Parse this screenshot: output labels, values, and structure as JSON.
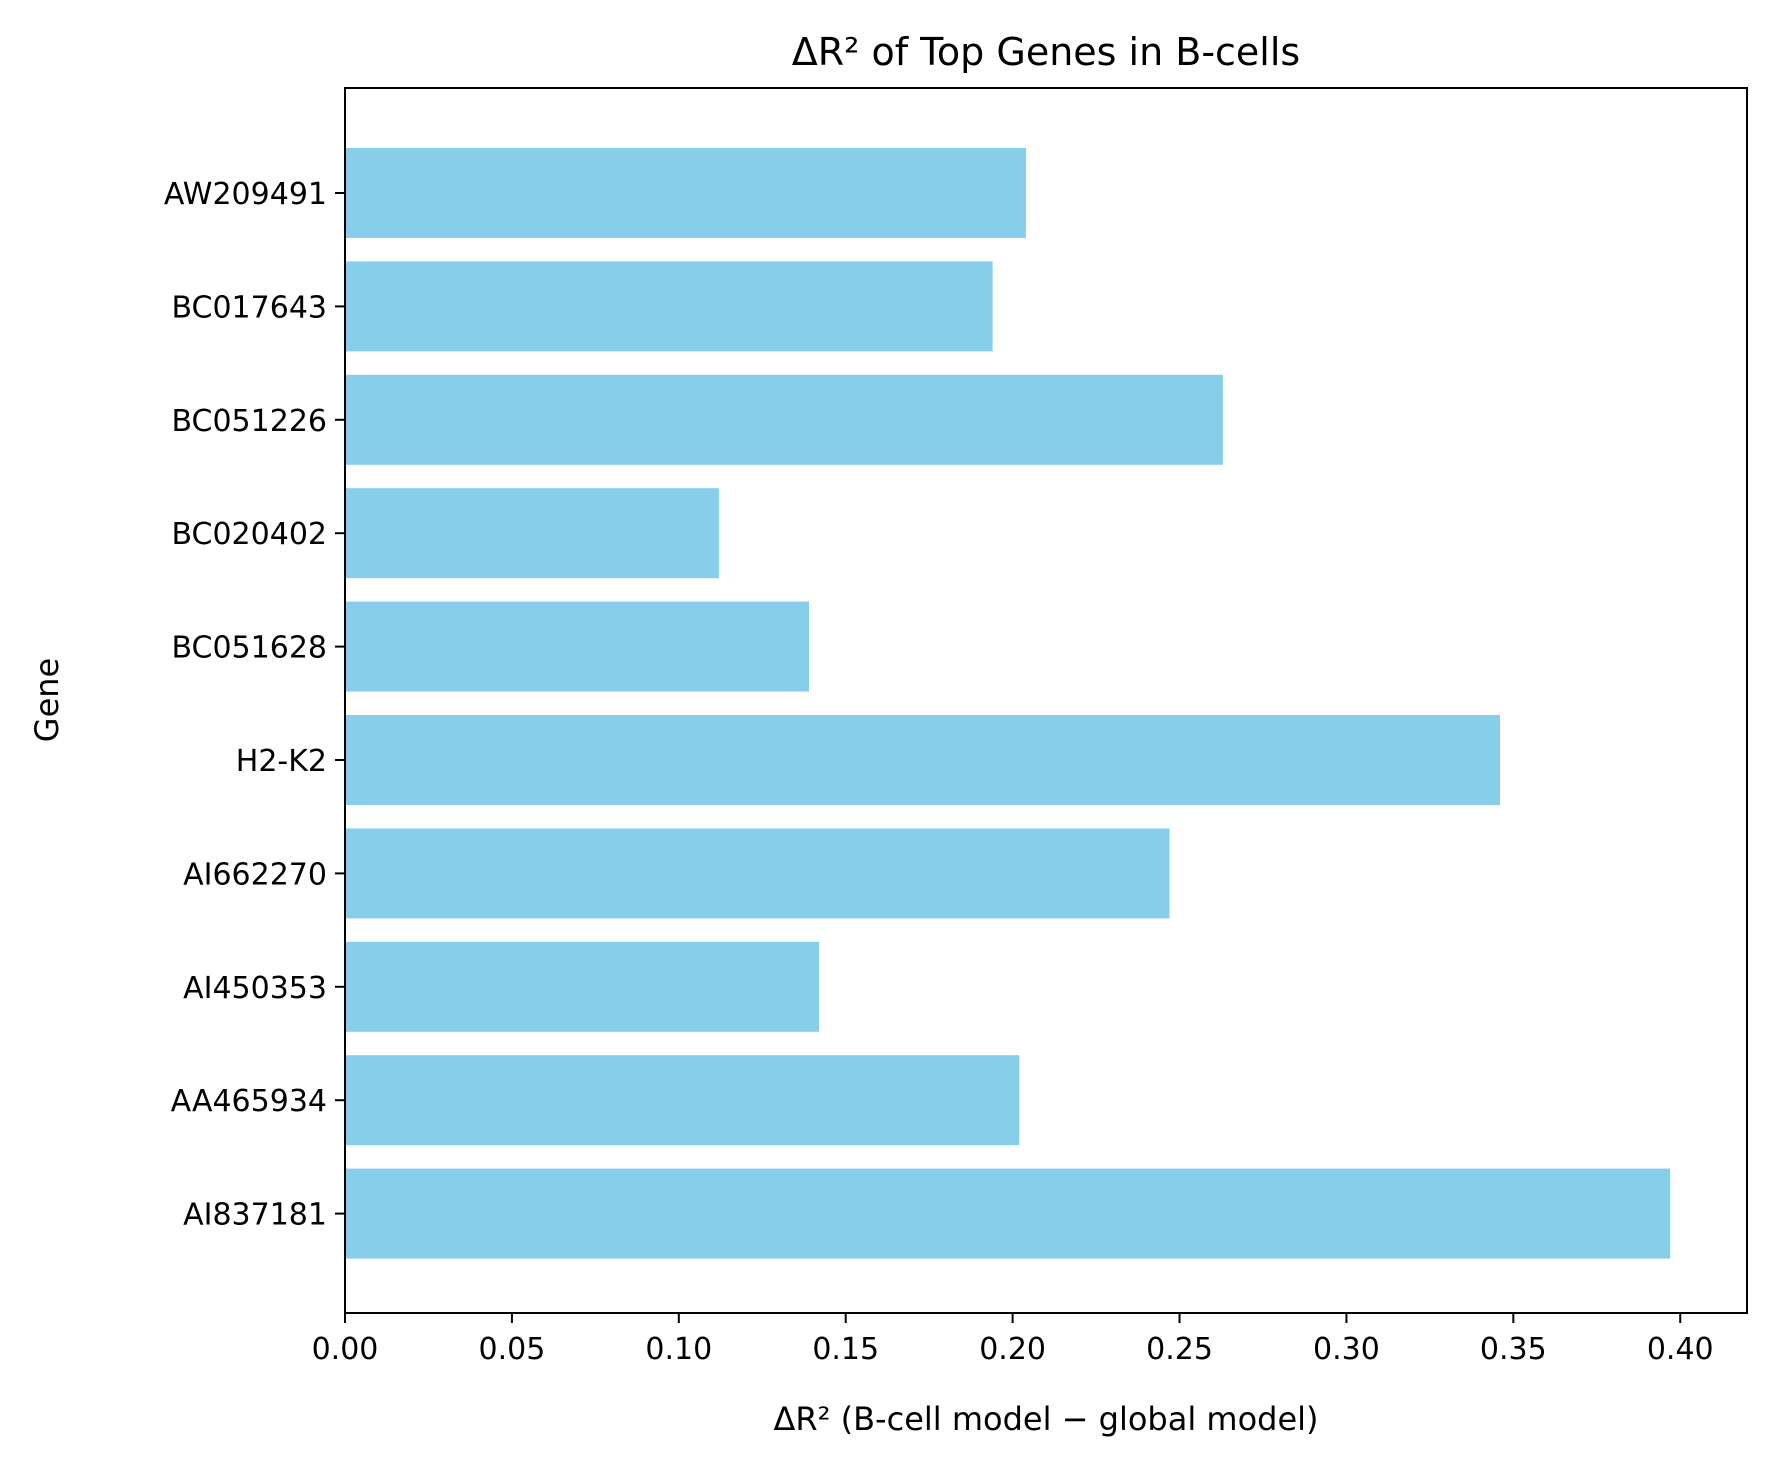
{
  "chart_data": {
    "type": "bar",
    "orientation": "horizontal",
    "title": "ΔR² of Top Genes in B-cells",
    "xlabel": "ΔR² (B-cell model − global model)",
    "ylabel": "Gene",
    "xlim": [
      0,
      0.42
    ],
    "xticks": [
      "0.00",
      "0.05",
      "0.10",
      "0.15",
      "0.20",
      "0.25",
      "0.30",
      "0.35",
      "0.40"
    ],
    "categories": [
      "AW209491",
      "BC017643",
      "BC051226",
      "BC020402",
      "BC051628",
      "H2-K2",
      "AI662270",
      "AI450353",
      "AA465934",
      "AI837181"
    ],
    "values": [
      0.204,
      0.194,
      0.263,
      0.112,
      0.139,
      0.346,
      0.247,
      0.142,
      0.202,
      0.397
    ],
    "bar_color": "#87ceeb",
    "grid": false,
    "legend": "none"
  }
}
